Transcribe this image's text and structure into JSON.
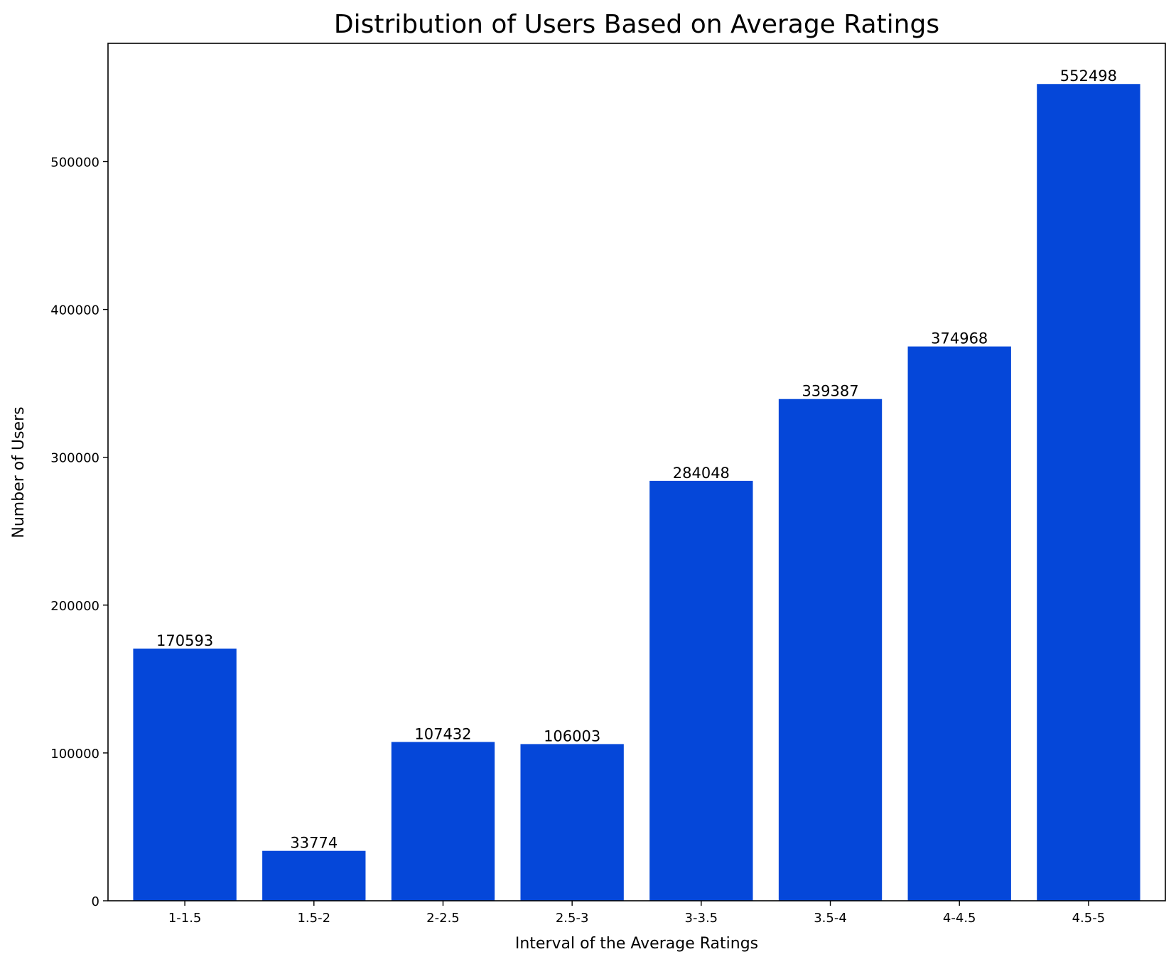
{
  "chart_data": {
    "type": "bar",
    "title": "Distribution of Users Based on Average Ratings",
    "xlabel": "Interval of the Average Ratings",
    "ylabel": "Number of Users",
    "categories": [
      "1-1.5",
      "1.5-2",
      "2-2.5",
      "2.5-3",
      "3-3.5",
      "3.5-4",
      "4-4.5",
      "4.5-5"
    ],
    "values": [
      170593,
      33774,
      107432,
      106003,
      284048,
      339387,
      374968,
      552498
    ],
    "data_labels": [
      "170593",
      "33774",
      "107432",
      "106003",
      "284048",
      "339387",
      "374968",
      "552498"
    ],
    "yticks": [
      0,
      100000,
      200000,
      300000,
      400000,
      500000
    ],
    "ytick_labels": [
      "0",
      "100000",
      "200000",
      "300000",
      "400000",
      "500000"
    ],
    "ylim": [
      0,
      580000
    ],
    "grid": false,
    "bar_color": "#0547d9"
  }
}
